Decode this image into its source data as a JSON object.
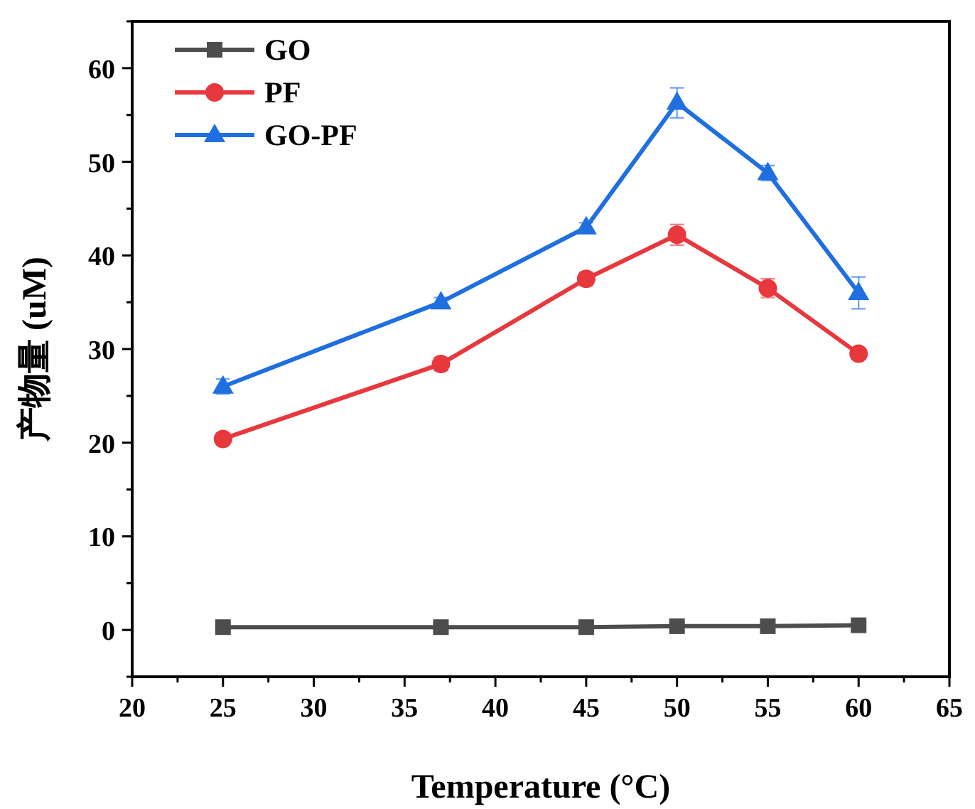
{
  "chart_data": {
    "type": "line",
    "xlabel": "Temperature (°C)",
    "ylabel": "产物量 (uM)",
    "x": [
      25,
      37,
      45,
      50,
      55,
      60
    ],
    "xlim": [
      20,
      65
    ],
    "ylim": [
      -5,
      65
    ],
    "xticks": [
      20,
      {
        "value": 22.5,
        "label": null
      },
      25,
      {
        "value": 27.5,
        "label": null
      },
      30,
      {
        "value": 32.5,
        "label": null
      },
      35,
      {
        "value": 37.5,
        "label": null
      },
      40,
      {
        "value": 42.5,
        "label": null
      },
      45,
      {
        "value": 47.5,
        "label": null
      },
      50,
      {
        "value": 52.5,
        "label": null
      },
      55,
      {
        "value": 57.5,
        "label": null
      },
      60,
      {
        "value": 62.5,
        "label": null
      },
      65
    ],
    "yticks": [
      {
        "value": -5,
        "label": null
      },
      0,
      {
        "value": 5,
        "label": null
      },
      10,
      {
        "value": 15,
        "label": null
      },
      20,
      {
        "value": 25,
        "label": null
      },
      30,
      {
        "value": 35,
        "label": null
      },
      40,
      {
        "value": 45,
        "label": null
      },
      50,
      {
        "value": 55,
        "label": null
      },
      60,
      {
        "value": 65,
        "label": null
      }
    ],
    "legend": "top left",
    "grid": false,
    "series": [
      {
        "name": "GO",
        "color": "#4d4d4d",
        "marker": "square",
        "values": [
          0.3,
          0.3,
          0.3,
          0.4,
          0.4,
          0.5
        ]
      },
      {
        "name": "PF",
        "color": "#e8383d",
        "marker": "circle",
        "values": [
          20.4,
          28.4,
          37.5,
          42.2,
          36.5,
          29.5
        ],
        "errors": [
          0.6,
          0.7,
          0.7,
          1.1,
          1.0,
          0.6
        ]
      },
      {
        "name": "GO-PF",
        "color": "#1f6fe0",
        "marker": "triangle",
        "values": [
          26,
          35,
          43,
          56.3,
          48.8,
          36
        ],
        "errors": [
          0.8,
          0.5,
          0.5,
          1.6,
          0.8,
          1.7
        ]
      }
    ]
  }
}
